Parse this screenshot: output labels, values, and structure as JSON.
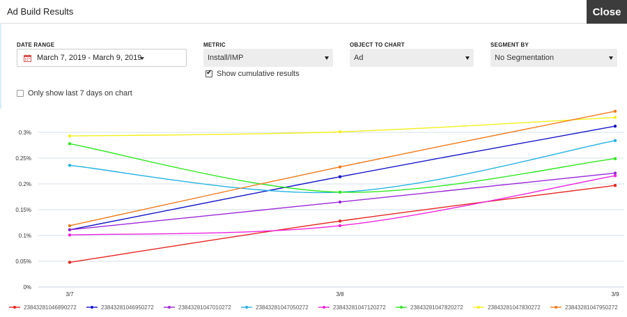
{
  "window": {
    "title": "Ad Build Results",
    "close_label": "Close"
  },
  "filters": {
    "date_range": {
      "label": "DATE RANGE",
      "value": "March 7, 2019 - March 9, 2019"
    },
    "metric": {
      "label": "METRIC",
      "value": "Install/IMP"
    },
    "object": {
      "label": "OBJECT TO CHART",
      "value": "Ad"
    },
    "segment": {
      "label": "SEGMENT BY",
      "value": "No Segmentation"
    },
    "cumulative": {
      "label": "Show cumulative results",
      "checked": true
    },
    "last7": {
      "label": "Only show last 7 days on chart",
      "checked": false
    }
  },
  "chart_data": {
    "type": "line",
    "x": [
      "3/7",
      "3/8",
      "3/9"
    ],
    "y_ticks": [
      "0%",
      "0.05%",
      "0.1%",
      "0.15%",
      "0.2%",
      "0.25%",
      "0.3%"
    ],
    "ylim": [
      0,
      0.3
    ],
    "y_unit": "%",
    "grid": true,
    "legend_position": "bottom",
    "series": [
      {
        "name": "23843281046890272",
        "color": "#e8221c",
        "values": [
          0.048,
          0.128,
          0.197
        ]
      },
      {
        "name": "23843281046950272",
        "color": "#1414c8",
        "values": [
          0.111,
          0.214,
          0.312
        ]
      },
      {
        "name": "23843281047010272",
        "color": "#9b27d6",
        "values": [
          0.111,
          0.165,
          0.221
        ]
      },
      {
        "name": "23843281047050272",
        "color": "#21b1e3",
        "values": [
          0.236,
          0.184,
          0.284
        ]
      },
      {
        "name": "23843281047120272",
        "color": "#ee22e0",
        "values": [
          0.101,
          0.119,
          0.216
        ]
      },
      {
        "name": "23843281047820272",
        "color": "#2ee81f",
        "values": [
          0.278,
          0.184,
          0.249
        ]
      },
      {
        "name": "23843281047830272",
        "color": "#f3f01c",
        "values": [
          0.293,
          0.301,
          0.329
        ]
      },
      {
        "name": "23843281047950272",
        "color": "#f07a1a",
        "values": [
          0.119,
          0.233,
          0.341
        ]
      }
    ]
  }
}
